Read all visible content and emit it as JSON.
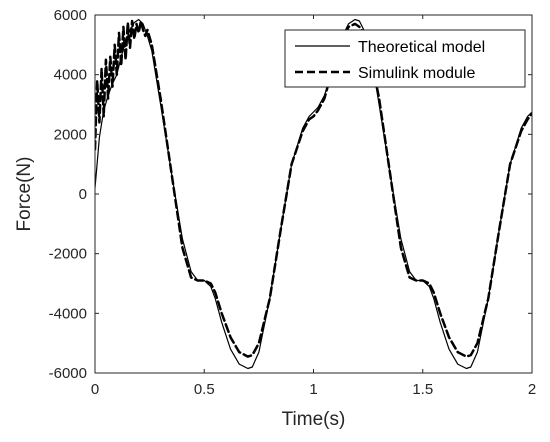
{
  "chart_data": {
    "type": "line",
    "xlabel": "Time(s)",
    "ylabel": "Force(N)",
    "xlim": [
      0,
      2
    ],
    "ylim": [
      -6000,
      6000
    ],
    "xticks": [
      0,
      0.5,
      1,
      1.5,
      2
    ],
    "xtick_labels": [
      "0",
      "0.5",
      "1",
      "1.5",
      "2"
    ],
    "yticks": [
      -6000,
      -4000,
      -2000,
      0,
      2000,
      4000,
      6000
    ],
    "ytick_labels": [
      "-6000",
      "-4000",
      "-2000",
      "0",
      "2000",
      "4000",
      "6000"
    ],
    "grid": false,
    "legend_position": "top-right",
    "series": [
      {
        "name": "Theoretical model",
        "style": "solid",
        "color": "#000000",
        "x": [
          0,
          0.02,
          0.04,
          0.06,
          0.08,
          0.1,
          0.12,
          0.14,
          0.16,
          0.18,
          0.2,
          0.22,
          0.24,
          0.26,
          0.3,
          0.35,
          0.4,
          0.44,
          0.47,
          0.5,
          0.53,
          0.55,
          0.58,
          0.62,
          0.66,
          0.7,
          0.72,
          0.75,
          0.8,
          0.85,
          0.9,
          0.95,
          0.98,
          1.0,
          1.02,
          1.05,
          1.08,
          1.12,
          1.16,
          1.19,
          1.21,
          1.23,
          1.26,
          1.3,
          1.35,
          1.4,
          1.44,
          1.47,
          1.5,
          1.53,
          1.55,
          1.58,
          1.62,
          1.66,
          1.7,
          1.72,
          1.75,
          1.8,
          1.85,
          1.9,
          1.95,
          1.98,
          2.0
        ],
        "y": [
          200,
          1900,
          2800,
          3300,
          3700,
          4000,
          4600,
          5100,
          5500,
          5750,
          5850,
          5700,
          5300,
          4800,
          3000,
          700,
          -1500,
          -2600,
          -2900,
          -2900,
          -3100,
          -3500,
          -4300,
          -5200,
          -5700,
          -5850,
          -5800,
          -5300,
          -3500,
          -1200,
          1000,
          2200,
          2600,
          2750,
          2900,
          3300,
          4000,
          5100,
          5700,
          5850,
          5800,
          5500,
          4800,
          3000,
          700,
          -1500,
          -2600,
          -2900,
          -2900,
          -3100,
          -3500,
          -4300,
          -5200,
          -5700,
          -5850,
          -5800,
          -5300,
          -3500,
          -1200,
          1000,
          2200,
          2600,
          2750
        ]
      },
      {
        "name": "Simulink module",
        "style": "dashed",
        "color": "#000000",
        "x": [
          0,
          0.01,
          0.02,
          0.03,
          0.04,
          0.05,
          0.06,
          0.07,
          0.08,
          0.09,
          0.1,
          0.11,
          0.12,
          0.13,
          0.14,
          0.15,
          0.16,
          0.17,
          0.18,
          0.19,
          0.2,
          0.21,
          0.22,
          0.23,
          0.24,
          0.26,
          0.3,
          0.35,
          0.4,
          0.44,
          0.47,
          0.5,
          0.53,
          0.55,
          0.58,
          0.62,
          0.66,
          0.7,
          0.72,
          0.75,
          0.8,
          0.85,
          0.9,
          0.95,
          0.98,
          1.0,
          1.02,
          1.05,
          1.08,
          1.12,
          1.16,
          1.19,
          1.21,
          1.23,
          1.26,
          1.3,
          1.35,
          1.4,
          1.44,
          1.47,
          1.5,
          1.53,
          1.55,
          1.58,
          1.62,
          1.66,
          1.7,
          1.72,
          1.75,
          1.8,
          1.85,
          1.9,
          1.95,
          1.98,
          2.0
        ],
        "y": [
          1500,
          3800,
          2400,
          4200,
          2600,
          4500,
          3200,
          4600,
          3600,
          5000,
          4000,
          5400,
          4300,
          5600,
          4500,
          5750,
          4900,
          5800,
          5200,
          5700,
          5400,
          5800,
          5500,
          5300,
          5500,
          5000,
          3200,
          700,
          -1800,
          -2800,
          -2900,
          -2900,
          -3000,
          -3300,
          -4000,
          -4800,
          -5300,
          -5450,
          -5400,
          -5000,
          -3500,
          -1200,
          1000,
          2100,
          2500,
          2600,
          2800,
          3200,
          4000,
          5000,
          5600,
          5700,
          5600,
          5400,
          4700,
          3200,
          700,
          -1800,
          -2800,
          -2900,
          -2900,
          -3000,
          -3300,
          -4000,
          -4800,
          -5300,
          -5450,
          -5400,
          -5000,
          -3500,
          -1200,
          1000,
          2100,
          2500,
          2700
        ]
      }
    ]
  }
}
